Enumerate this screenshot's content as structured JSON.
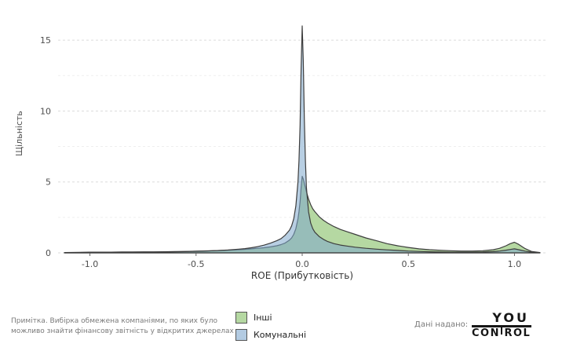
{
  "chart_data": {
    "type": "area",
    "subtype": "kde-density",
    "title": "",
    "xlabel": "ROE (Прибутковість)",
    "ylabel": "Щільність",
    "xlim": [
      -1.15,
      1.15
    ],
    "ylim": [
      0,
      16.5
    ],
    "xticks": [
      -1.0,
      -0.5,
      0.0,
      0.5,
      1.0
    ],
    "xtick_labels": [
      "-1.0",
      "-0.5",
      "0.0",
      "0.5",
      "1.0"
    ],
    "yticks": [
      0,
      5,
      10,
      15
    ],
    "ytick_labels": [
      "0",
      "5",
      "10",
      "15"
    ],
    "minor_yticks": [
      2.5,
      7.5,
      12.5
    ],
    "grid": "horizontal-dashed",
    "legend_position": "bottom-center",
    "x": [
      -1.12,
      -1.05,
      -1.0,
      -0.95,
      -0.9,
      -0.85,
      -0.8,
      -0.75,
      -0.7,
      -0.65,
      -0.6,
      -0.55,
      -0.5,
      -0.45,
      -0.4,
      -0.35,
      -0.3,
      -0.27,
      -0.24,
      -0.21,
      -0.18,
      -0.15,
      -0.12,
      -0.1,
      -0.08,
      -0.06,
      -0.05,
      -0.04,
      -0.03,
      -0.02,
      -0.015,
      -0.01,
      -0.005,
      0.0,
      0.005,
      0.01,
      0.015,
      0.02,
      0.03,
      0.04,
      0.05,
      0.06,
      0.08,
      0.1,
      0.12,
      0.15,
      0.18,
      0.21,
      0.25,
      0.3,
      0.35,
      0.4,
      0.45,
      0.5,
      0.55,
      0.6,
      0.65,
      0.7,
      0.75,
      0.8,
      0.85,
      0.9,
      0.93,
      0.96,
      0.98,
      1.0,
      1.02,
      1.05,
      1.08,
      1.12
    ],
    "series": [
      {
        "name": "Інші",
        "color": "#b5d8a2",
        "fill_opacity": 1.0,
        "values": [
          0.02,
          0.04,
          0.05,
          0.05,
          0.05,
          0.06,
          0.06,
          0.07,
          0.07,
          0.08,
          0.09,
          0.1,
          0.12,
          0.14,
          0.16,
          0.19,
          0.22,
          0.25,
          0.28,
          0.32,
          0.36,
          0.42,
          0.5,
          0.58,
          0.7,
          0.9,
          1.05,
          1.3,
          1.7,
          2.4,
          2.9,
          3.6,
          4.6,
          5.4,
          5.2,
          4.9,
          4.6,
          4.3,
          3.8,
          3.4,
          3.1,
          2.9,
          2.55,
          2.3,
          2.1,
          1.85,
          1.65,
          1.5,
          1.3,
          1.05,
          0.85,
          0.65,
          0.5,
          0.38,
          0.28,
          0.22,
          0.18,
          0.15,
          0.13,
          0.13,
          0.15,
          0.22,
          0.32,
          0.5,
          0.65,
          0.75,
          0.6,
          0.3,
          0.1,
          0.02
        ]
      },
      {
        "name": "Комунальні",
        "color": "#7da7cc",
        "fill_opacity": 0.55,
        "values": [
          0.01,
          0.02,
          0.03,
          0.03,
          0.03,
          0.04,
          0.04,
          0.05,
          0.05,
          0.06,
          0.07,
          0.09,
          0.11,
          0.13,
          0.16,
          0.2,
          0.26,
          0.3,
          0.36,
          0.44,
          0.54,
          0.68,
          0.85,
          1.0,
          1.25,
          1.6,
          1.9,
          2.4,
          3.3,
          5.0,
          6.5,
          9.0,
          13.0,
          16.0,
          13.5,
          9.5,
          6.5,
          4.6,
          2.9,
          2.1,
          1.7,
          1.45,
          1.15,
          0.95,
          0.8,
          0.65,
          0.55,
          0.48,
          0.4,
          0.32,
          0.26,
          0.21,
          0.17,
          0.13,
          0.1,
          0.08,
          0.06,
          0.05,
          0.05,
          0.05,
          0.06,
          0.09,
          0.13,
          0.19,
          0.24,
          0.28,
          0.22,
          0.12,
          0.05,
          0.01
        ]
      }
    ]
  },
  "legend": {
    "items": [
      {
        "label": "Інші",
        "color": "#b5d8a2"
      },
      {
        "label": "Комунальні",
        "color": "#b3cbe2"
      }
    ]
  },
  "footer": {
    "note_line1": "Примітка. Вибірка обмежена компаніями, по яких було",
    "note_line2": "можливо знайти фінансову звітність у відкритих джерелах",
    "credit_label": "Дані надано:",
    "logo_line1": "YOU",
    "logo_line2_left": "CON",
    "logo_line2_right": "ROL"
  },
  "colors": {
    "grid_major": "#dbdbdb",
    "grid_minor": "#efefef",
    "curve_stroke": "#3d3d3d",
    "tick_text": "#4d4d4d"
  }
}
